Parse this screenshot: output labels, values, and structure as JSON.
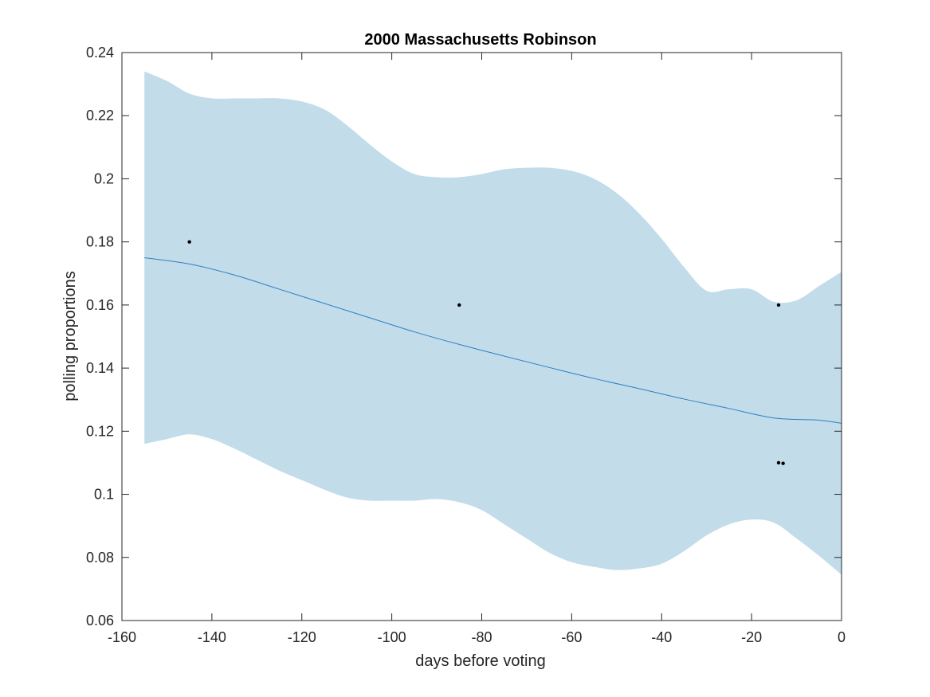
{
  "chart_data": {
    "type": "line",
    "title": "2000 Massachusetts Robinson",
    "xlabel": "days before voting",
    "ylabel": "polling proportions",
    "xlim": [
      -160,
      0
    ],
    "ylim": [
      0.06,
      0.24
    ],
    "xticks": [
      -160,
      -140,
      -120,
      -100,
      -80,
      -60,
      -40,
      -20,
      0
    ],
    "xtick_labels": [
      "-160",
      "-140",
      "-120",
      "-100",
      "-80",
      "-60",
      "-40",
      "-20",
      "0"
    ],
    "yticks": [
      0.06,
      0.08,
      0.1,
      0.12,
      0.14,
      0.16,
      0.18,
      0.2,
      0.22,
      0.24
    ],
    "ytick_labels": [
      "0.06",
      "0.08",
      "0.1",
      "0.12",
      "0.14",
      "0.16",
      "0.18",
      "0.2",
      "0.22",
      "0.24"
    ],
    "grid": false,
    "box": true,
    "colors": {
      "trend": "#2f7fc1",
      "band": "#c2dcea",
      "points": "#000000",
      "axes": "#262626"
    },
    "series": [
      {
        "type": "line",
        "x": [
          -155,
          -145,
          -135,
          -125,
          -115,
          -105,
          -95,
          -85,
          -75,
          -65,
          -55,
          -45,
          -35,
          -25,
          -15,
          -5,
          0
        ],
        "values": [
          0.175,
          0.173,
          0.1695,
          0.165,
          0.1605,
          0.156,
          0.1515,
          0.1475,
          0.1438,
          0.1402,
          0.1367,
          0.1335,
          0.1302,
          0.1272,
          0.1242,
          0.1235,
          0.1225
        ]
      },
      {
        "type": "area",
        "x": [
          -155,
          -150,
          -145,
          -140,
          -135,
          -130,
          -125,
          -120,
          -115,
          -110,
          -105,
          -100,
          -95,
          -90,
          -85,
          -80,
          -75,
          -70,
          -65,
          -60,
          -55,
          -50,
          -45,
          -40,
          -35,
          -30,
          -25,
          -20,
          -15,
          -10,
          -5,
          0
        ],
        "upper": [
          0.234,
          0.231,
          0.227,
          0.2255,
          0.2255,
          0.2255,
          0.2255,
          0.2245,
          0.222,
          0.217,
          0.211,
          0.2055,
          0.2015,
          0.2005,
          0.2005,
          0.2015,
          0.203,
          0.2035,
          0.2035,
          0.2025,
          0.2,
          0.1955,
          0.189,
          0.181,
          0.172,
          0.1645,
          0.165,
          0.165,
          0.161,
          0.1615,
          0.166,
          0.1705
        ],
        "lower": [
          0.116,
          0.1175,
          0.119,
          0.1175,
          0.1145,
          0.111,
          0.1075,
          0.1045,
          0.1015,
          0.099,
          0.098,
          0.098,
          0.098,
          0.0985,
          0.0975,
          0.095,
          0.0905,
          0.086,
          0.0815,
          0.0785,
          0.077,
          0.076,
          0.0765,
          0.078,
          0.082,
          0.087,
          0.0905,
          0.092,
          0.091,
          0.086,
          0.0805,
          0.0745
        ]
      },
      {
        "type": "scatter",
        "x": [
          -145,
          -85,
          -14,
          -14,
          -13
        ],
        "values": [
          0.18,
          0.16,
          0.16,
          0.11,
          0.1098
        ]
      }
    ]
  }
}
